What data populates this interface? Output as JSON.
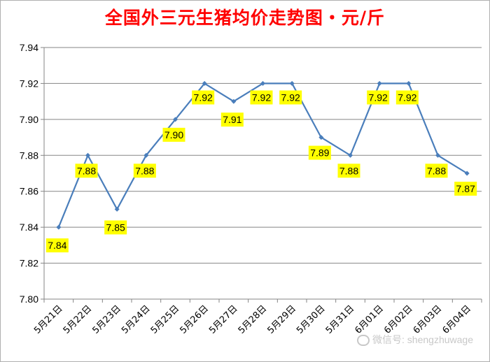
{
  "chart_data": {
    "type": "line",
    "title": "全国外三元生猪均价走势图・元/斤",
    "categories": [
      "5月21日",
      "5月22日",
      "5月23日",
      "5月24日",
      "5月25日",
      "5月26日",
      "5月27日",
      "5月28日",
      "5月29日",
      "5月30日",
      "5月31日",
      "6月01日",
      "6月02日",
      "6月03日",
      "6月04日"
    ],
    "series": [
      {
        "values": [
          7.84,
          7.88,
          7.85,
          7.88,
          7.9,
          7.92,
          7.91,
          7.92,
          7.92,
          7.89,
          7.88,
          7.92,
          7.92,
          7.88,
          7.87
        ]
      }
    ],
    "data_labels": [
      "7.84",
      "7.88",
      "7.85",
      "7.88",
      "7.90",
      "7.92",
      "7.91",
      "7.92",
      "7.92",
      "7.89",
      "7.88",
      "7.92",
      "7.92",
      "7.88",
      "7.87"
    ],
    "ylim": [
      7.8,
      7.94
    ],
    "yticks": [
      "7.80",
      "7.82",
      "7.84",
      "7.86",
      "7.88",
      "7.90",
      "7.92",
      "7.94"
    ],
    "grid": true,
    "legend": "none",
    "line_color": "#4a7ebb",
    "label_bg_color": "#ffff00",
    "title_color": "#ff0000"
  },
  "watermark": {
    "text": "微信号: shengzhuwage",
    "icon": "wechat-icon"
  }
}
